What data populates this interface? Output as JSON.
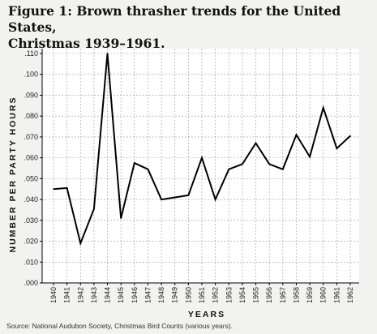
{
  "figure": {
    "title_line1": "Figure 1: Brown thrasher trends for the United States,",
    "title_line2": "Christmas 1939–1961.",
    "source": "Source: National Audubon Society, Christmas Bird Counts (various years)."
  },
  "chart_data": {
    "type": "line",
    "xlabel": "YEARS",
    "ylabel": "NUMBER PER PARTY HOURS",
    "ylim": [
      0,
      0.11
    ],
    "grid": true,
    "y_ticks": [
      ".000",
      ".010",
      ".020",
      ".030",
      ".040",
      ".050",
      ".060",
      ".070",
      ".080",
      ".090",
      ".100",
      ".110"
    ],
    "categories": [
      "1940",
      "1941",
      "1942",
      "1943",
      "1944",
      "1945",
      "1946",
      "1947",
      "1948",
      "1949",
      "1950",
      "1951",
      "1952",
      "1953",
      "1954",
      "1955",
      "1956",
      "1957",
      "1958",
      "1959",
      "1960",
      "1961",
      "1962"
    ],
    "series": [
      {
        "values": [
          0.045,
          0.0455,
          0.019,
          0.0355,
          0.11,
          0.031,
          0.0575,
          0.0545,
          0.04,
          0.041,
          0.042,
          0.06,
          0.04,
          0.0545,
          0.057,
          0.067,
          0.057,
          0.0545,
          0.071,
          0.0605,
          0.084,
          0.0645,
          0.0705
        ],
        "color": "#000000"
      }
    ]
  }
}
